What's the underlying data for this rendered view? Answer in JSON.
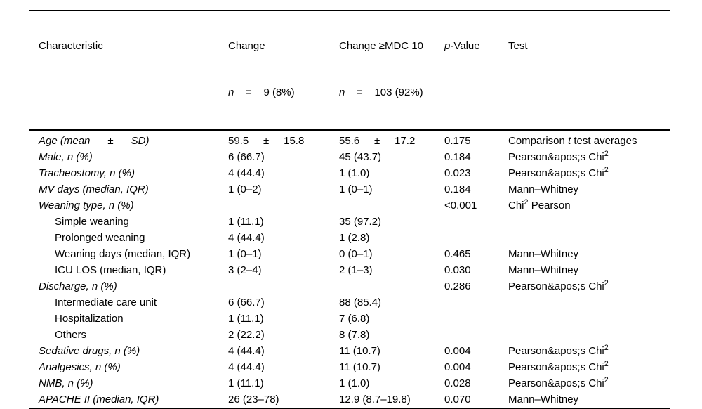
{
  "table": {
    "header": {
      "characteristic": "Characteristic",
      "change_line1": "Change",
      "change_line2": "~n~    =    9 (8%)",
      "mdc_line1": "Change ≥MDC 10",
      "mdc_line2": "~n~    =    103 (92%)",
      "p_value": "~p~-Value",
      "test": "Test"
    },
    "rows": [
      {
        "label": "Age (mean      ±      SD)",
        "italic": true,
        "indent": false,
        "change": "59.5     ±     15.8",
        "mdc": "55.6     ±     17.2",
        "p": "0.175",
        "test": "Comparison ~t~ test averages"
      },
      {
        "label": "Male, n (%)",
        "italic": true,
        "indent": false,
        "change": "6 (66.7)",
        "mdc": "45 (43.7)",
        "p": "0.184",
        "test": "Pearson&apos;s Chi^{2}"
      },
      {
        "label": "Tracheostomy, n (%)",
        "italic": true,
        "indent": false,
        "change": "4 (44.4)",
        "mdc": "1 (1.0)",
        "p": "0.023",
        "test": "Pearson&apos;s Chi^{2}"
      },
      {
        "label": "MV days (median, IQR)",
        "italic": true,
        "indent": false,
        "change": "1 (0–2)",
        "mdc": "1 (0–1)",
        "p": "0.184",
        "test": "Mann–Whitney"
      },
      {
        "label": "Weaning type, n (%)",
        "italic": true,
        "indent": false,
        "change": "",
        "mdc": "",
        "p": "<0.001",
        "test": "Chi^{2} Pearson"
      },
      {
        "label": "Simple weaning",
        "italic": false,
        "indent": true,
        "change": "1 (11.1)",
        "mdc": "35 (97.2)",
        "p": "",
        "test": ""
      },
      {
        "label": "Prolonged weaning",
        "italic": false,
        "indent": true,
        "change": "4 (44.4)",
        "mdc": "1 (2.8)",
        "p": "",
        "test": ""
      },
      {
        "label": "Weaning days (median, IQR)",
        "italic": false,
        "indent": true,
        "change": "1 (0–1)",
        "mdc": "0 (0–1)",
        "p": "0.465",
        "test": "Mann–Whitney"
      },
      {
        "label": "ICU LOS (median, IQR)",
        "italic": false,
        "indent": true,
        "change": "3 (2–4)",
        "mdc": "2 (1–3)",
        "p": "0.030",
        "test": "Mann–Whitney"
      },
      {
        "label": "Discharge, n (%)",
        "italic": true,
        "indent": false,
        "change": "",
        "mdc": "",
        "p": "0.286",
        "test": "Pearson&apos;s Chi^{2}"
      },
      {
        "label": "Intermediate care unit",
        "italic": false,
        "indent": true,
        "change": "6 (66.7)",
        "mdc": "88 (85.4)",
        "p": "",
        "test": ""
      },
      {
        "label": "Hospitalization",
        "italic": false,
        "indent": true,
        "change": "1 (11.1)",
        "mdc": "7 (6.8)",
        "p": "",
        "test": ""
      },
      {
        "label": "Others",
        "italic": false,
        "indent": true,
        "change": "2 (22.2)",
        "mdc": "8 (7.8)",
        "p": "",
        "test": ""
      },
      {
        "label": "Sedative drugs, n (%)",
        "italic": true,
        "indent": false,
        "change": "4 (44.4)",
        "mdc": "11 (10.7)",
        "p": "0.004",
        "test": "Pearson&apos;s Chi^{2}"
      },
      {
        "label": "Analgesics, n (%)",
        "italic": true,
        "indent": false,
        "change": "4 (44.4)",
        "mdc": "11 (10.7)",
        "p": "0.004",
        "test": "Pearson&apos;s Chi^{2}"
      },
      {
        "label": "NMB, n (%)",
        "italic": true,
        "indent": false,
        "change": "1 (11.1)",
        "mdc": "1 (1.0)",
        "p": "0.028",
        "test": "Pearson&apos;s Chi^{2}"
      },
      {
        "label": "APACHE II (median, IQR)",
        "italic": true,
        "indent": false,
        "change": "26 (23–78)",
        "mdc": "12.9 (8.7–19.8)",
        "p": "0.070",
        "test": "Mann–Whitney"
      }
    ]
  }
}
